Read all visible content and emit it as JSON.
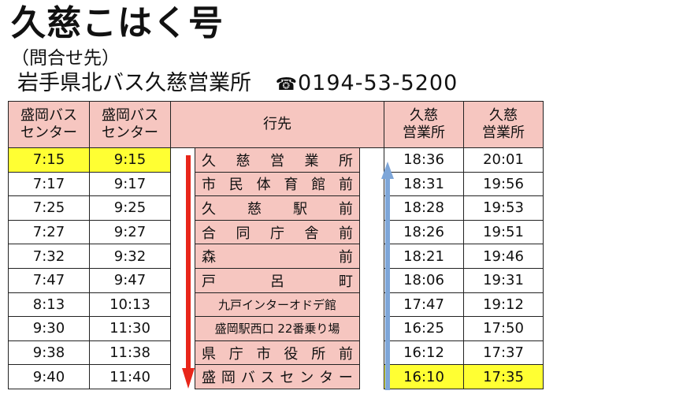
{
  "header": {
    "title": "久慈こはく号",
    "inquiry": "（問合せ先）",
    "office": "岩手県北バス久慈営業所",
    "phone_icon": "☎",
    "phone": "0194-53-5200"
  },
  "table": {
    "head": {
      "dep1": [
        "盛岡バス",
        "センター"
      ],
      "dep2": [
        "盛岡バス",
        "センター"
      ],
      "dest": "行先",
      "arr1": [
        "久慈",
        "営業所"
      ],
      "arr2": [
        "久慈",
        "営業所"
      ]
    },
    "rows": [
      {
        "d1": "7:15",
        "d2": "9:15",
        "stop": "久慈営業所",
        "a1": "18:36",
        "a2": "20:01"
      },
      {
        "d1": "7:17",
        "d2": "9:17",
        "stop": "市民体育館前",
        "a1": "18:31",
        "a2": "19:56"
      },
      {
        "d1": "7:25",
        "d2": "9:25",
        "stop": "久慈駅前",
        "a1": "18:28",
        "a2": "19:53"
      },
      {
        "d1": "7:27",
        "d2": "9:27",
        "stop": "合同庁舎前",
        "a1": "18:26",
        "a2": "19:51"
      },
      {
        "d1": "7:32",
        "d2": "9:32",
        "stop": "森前",
        "a1": "18:21",
        "a2": "19:46"
      },
      {
        "d1": "7:47",
        "d2": "9:47",
        "stop": "戸呂町",
        "a1": "18:06",
        "a2": "19:31"
      },
      {
        "d1": "8:13",
        "d2": "10:13",
        "stop": "九戸インターオドデ館",
        "a1": "17:47",
        "a2": "19:12"
      },
      {
        "d1": "9:30",
        "d2": "11:30",
        "stop": "盛岡駅西口 22番乗り場",
        "a1": "16:25",
        "a2": "17:50"
      },
      {
        "d1": "9:38",
        "d2": "11:38",
        "stop": "県庁市役所前",
        "a1": "16:12",
        "a2": "17:37"
      },
      {
        "d1": "9:40",
        "d2": "11:40",
        "stop": "盛岡バスセンター",
        "a1": "16:10",
        "a2": "17:35"
      }
    ]
  },
  "colors": {
    "header_bg": "#f6c6c0",
    "highlight": "#ffff33",
    "down_arrow": "#e8261a",
    "up_arrow": "#7ea6d8"
  },
  "icons": {
    "down_arrow": "arrow-down-icon",
    "up_arrow": "arrow-up-icon",
    "phone": "phone-icon"
  }
}
